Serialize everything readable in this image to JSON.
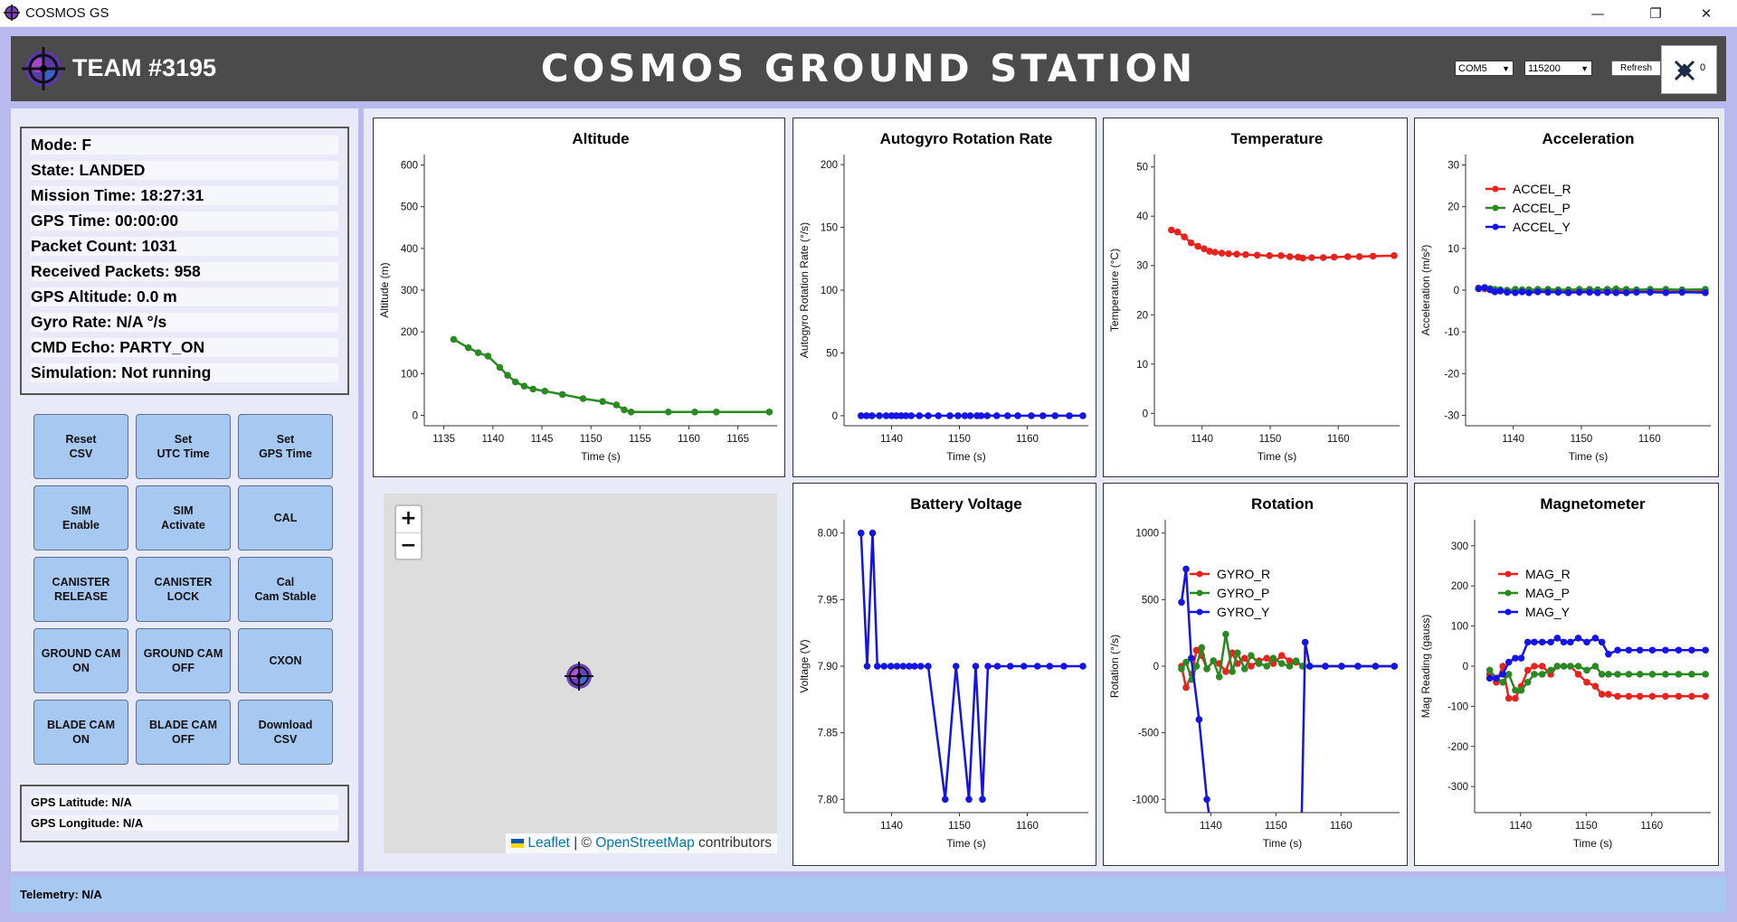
{
  "window": {
    "title": "COSMOS GS",
    "minimize": "—",
    "restore": "❐",
    "close": "✕"
  },
  "header": {
    "team": "TEAM #3195",
    "title": "COSMOS GROUND STATION",
    "port": "COM5",
    "baud": "115200",
    "refresh_label": "Refresh",
    "satellite_count": "0"
  },
  "status": [
    "Mode: F",
    "State: LANDED",
    "Mission Time: 18:27:31",
    "GPS Time: 00:00:00",
    "Packet Count: 1031",
    "Received Packets: 958",
    "GPS Altitude: 0.0 m",
    "Gyro Rate: N/A °/s",
    "CMD Echo: PARTY_ON",
    "Simulation: Not running"
  ],
  "buttons": [
    "Reset\nCSV",
    "Set\nUTC Time",
    "Set\nGPS Time",
    "SIM\nEnable",
    "SIM\nActivate",
    "CAL",
    "CANISTER\nRELEASE",
    "CANISTER\nLOCK",
    "Cal\nCam Stable",
    "GROUND CAM\nON",
    "GROUND CAM\nOFF",
    "CXON",
    "BLADE CAM\nON",
    "BLADE CAM\nOFF",
    "Download\nCSV"
  ],
  "gps": {
    "latitude": "GPS Latitude: N/A",
    "longitude": "GPS Longitude: N/A"
  },
  "map": {
    "zoom_in": "+",
    "zoom_out": "−",
    "attribution_leaflet": "Leaflet",
    "attribution_sep": " | © ",
    "attribution_osm": "OpenStreetMap",
    "attribution_rest": " contributors"
  },
  "telemetry": "Telemetry: N/A",
  "colors": {
    "R": "#e8231e",
    "P": "#2a8a22",
    "Y": "#1414e6",
    "altitude": "#2a8a22",
    "rotation_rate": "#1414e6",
    "temperature": "#e8231e",
    "voltage": "#1414e6"
  },
  "chart_data": [
    {
      "id": "altitude",
      "type": "line",
      "title": "Altitude",
      "xlabel": "Time (s)",
      "ylabel": "Altitude (m)",
      "xlim": [
        1133,
        1169
      ],
      "ylim": [
        -25,
        625
      ],
      "xticks": [
        1135,
        1140,
        1145,
        1150,
        1155,
        1160,
        1165
      ],
      "yticks": [
        0,
        100,
        200,
        300,
        400,
        500,
        600
      ],
      "series": [
        {
          "color": "altitude",
          "x": [
            1136,
            1137.5,
            1138.5,
            1139.5,
            1140.7,
            1141.5,
            1142.3,
            1143.2,
            1144.1,
            1145.3,
            1147.1,
            1149.2,
            1151.2,
            1152.6,
            1153.4,
            1154.1,
            1157.9,
            1160.6,
            1162.8,
            1168.2
          ],
          "y": [
            182,
            162,
            150,
            142,
            115,
            96,
            80,
            70,
            63,
            58,
            50,
            40,
            33,
            25,
            13,
            8,
            8,
            8,
            8,
            8
          ]
        }
      ]
    },
    {
      "id": "rotation_rate",
      "type": "line",
      "title": "Autogyro Rotation Rate",
      "xlabel": "Time (s)",
      "ylabel": "Autogyro Rotation Rate (°/s)",
      "xlim": [
        1133,
        1169
      ],
      "ylim": [
        -8,
        208
      ],
      "xticks": [
        1140,
        1150,
        1160
      ],
      "yticks": [
        0,
        50,
        100,
        150,
        200
      ],
      "series": [
        {
          "color": "rotation_rate",
          "x": [
            1135.5,
            1136.3,
            1137.1,
            1138.2,
            1139.2,
            1140,
            1140.7,
            1141.4,
            1142.1,
            1142.9,
            1144.1,
            1145.4,
            1146.9,
            1148.6,
            1149.8,
            1150.8,
            1151.6,
            1152.6,
            1153.2,
            1154.1,
            1155.5,
            1157.1,
            1158.6,
            1160.6,
            1162.3,
            1164.1,
            1166.2,
            1168.2
          ],
          "y": [
            0,
            0,
            0,
            0,
            0,
            0,
            0,
            0,
            0,
            0,
            0,
            0,
            0,
            0,
            0,
            0,
            0,
            0,
            0,
            0,
            0,
            0,
            0,
            0,
            0,
            0,
            0,
            0
          ]
        }
      ]
    },
    {
      "id": "temperature",
      "type": "line",
      "title": "Temperature",
      "xlabel": "Time (s)",
      "ylabel": "Temperature (°C)",
      "xlim": [
        1133,
        1169
      ],
      "ylim": [
        -2.5,
        52.5
      ],
      "xticks": [
        1140,
        1150,
        1160
      ],
      "yticks": [
        0,
        10,
        20,
        30,
        40,
        50
      ],
      "series": [
        {
          "color": "temperature",
          "x": [
            1135.5,
            1136.4,
            1137.4,
            1138.4,
            1139.4,
            1140.3,
            1141.1,
            1141.9,
            1142.9,
            1143.9,
            1145.1,
            1146.4,
            1148.1,
            1149.9,
            1151.6,
            1152.9,
            1154.1,
            1154.8,
            1156.1,
            1157.8,
            1159.4,
            1161.4,
            1163.1,
            1165.1,
            1168.2
          ],
          "y": [
            37.2,
            36.8,
            35.8,
            34.6,
            33.9,
            33.4,
            32.9,
            32.7,
            32.5,
            32.4,
            32.3,
            32.2,
            32.1,
            32.0,
            32.0,
            31.8,
            31.7,
            31.5,
            31.6,
            31.6,
            31.7,
            31.8,
            31.8,
            31.9,
            32.0
          ]
        }
      ]
    },
    {
      "id": "acceleration",
      "type": "line",
      "title": "Acceleration",
      "xlabel": "Time (s)",
      "ylabel": "Acceleration (m/s²)",
      "xlim": [
        1133,
        1169
      ],
      "ylim": [
        -32.5,
        32.5
      ],
      "xticks": [
        1140,
        1150,
        1160
      ],
      "yticks": [
        -30,
        -20,
        -10,
        0,
        10,
        20,
        30
      ],
      "legend": [
        "ACCEL_R",
        "ACCEL_P",
        "ACCEL_Y"
      ],
      "series": [
        {
          "name": "ACCEL_R",
          "color": "R",
          "x": [
            1134.9,
            1135.8,
            1136.6,
            1137.3,
            1138.1,
            1139.1,
            1140.3,
            1141.3,
            1142.3,
            1143.6,
            1145.1,
            1146.6,
            1148.1,
            1149.7,
            1151.2,
            1152.4,
            1153.8,
            1155.1,
            1156.6,
            1158.1,
            1160.1,
            1162.4,
            1164.8,
            1168.2
          ],
          "y": [
            0.5,
            0.3,
            0.2,
            0.1,
            -0.1,
            -0.1,
            -0.2,
            0,
            0.1,
            0,
            -0.1,
            0,
            -0.1,
            0,
            -0.1,
            0,
            0.1,
            -0.1,
            0,
            -0.1,
            0,
            -0.1,
            -0.1,
            -0.1
          ]
        },
        {
          "name": "ACCEL_P",
          "color": "P",
          "x": [
            1134.9,
            1135.8,
            1136.6,
            1137.3,
            1138.1,
            1139.1,
            1140.3,
            1141.3,
            1142.3,
            1143.6,
            1145.1,
            1146.6,
            1148.1,
            1149.7,
            1151.2,
            1152.4,
            1153.8,
            1155.1,
            1156.6,
            1158.1,
            1160.1,
            1162.4,
            1164.8,
            1168.2
          ],
          "y": [
            0.3,
            0.6,
            0.4,
            0.2,
            0.1,
            0,
            0.2,
            0.1,
            0.1,
            0.2,
            0.2,
            0.1,
            0.1,
            0.2,
            0.2,
            0.1,
            0.2,
            0.3,
            0.2,
            0.1,
            0.2,
            0.2,
            0.1,
            0.2
          ]
        },
        {
          "name": "ACCEL_Y",
          "color": "Y",
          "x": [
            1134.9,
            1135.8,
            1136.6,
            1137.3,
            1138.1,
            1139.1,
            1140.3,
            1141.3,
            1142.3,
            1143.6,
            1145.1,
            1146.6,
            1148.1,
            1149.7,
            1151.2,
            1152.4,
            1153.8,
            1155.1,
            1156.6,
            1158.1,
            1160.1,
            1162.4,
            1164.8,
            1168.2
          ],
          "y": [
            0.4,
            0.6,
            0.1,
            -0.4,
            -0.2,
            -0.5,
            -0.6,
            -0.4,
            -0.6,
            -0.4,
            -0.5,
            -0.5,
            -0.6,
            -0.5,
            -0.5,
            -0.6,
            -0.5,
            -0.6,
            -0.6,
            -0.5,
            -0.5,
            -0.6,
            -0.5,
            -0.6
          ]
        }
      ]
    },
    {
      "id": "voltage",
      "type": "line",
      "title": "Battery Voltage",
      "xlabel": "Time (s)",
      "ylabel": "Voltage (V)",
      "xlim": [
        1133,
        1169
      ],
      "ylim": [
        7.79,
        8.01
      ],
      "xticks": [
        1140,
        1150,
        1160
      ],
      "yticks": [
        7.8,
        7.85,
        7.9,
        7.95,
        8.0
      ],
      "series": [
        {
          "color": "voltage",
          "x": [
            1135.5,
            1136.4,
            1137.2,
            1137.9,
            1138.9,
            1139.9,
            1140.8,
            1141.7,
            1142.6,
            1143.4,
            1144.3,
            1145.4,
            1147.9,
            1149.5,
            1151.4,
            1152.4,
            1153.4,
            1154.2,
            1155.6,
            1157.5,
            1159.5,
            1161.5,
            1163.3,
            1165.4,
            1168.2
          ],
          "y": [
            8.0,
            7.9,
            8.0,
            7.9,
            7.9,
            7.9,
            7.9,
            7.9,
            7.9,
            7.9,
            7.9,
            7.9,
            7.8,
            7.9,
            7.8,
            7.9,
            7.8,
            7.9,
            7.9,
            7.9,
            7.9,
            7.9,
            7.9,
            7.9,
            7.9
          ]
        }
      ]
    },
    {
      "id": "rotation",
      "type": "line",
      "title": "Rotation",
      "xlabel": "Time (s)",
      "ylabel": "Rotation (°/s)",
      "xlim": [
        1133,
        1169
      ],
      "ylim": [
        -1100,
        1100
      ],
      "xticks": [
        1140,
        1150,
        1160
      ],
      "yticks": [
        -1000,
        -500,
        0,
        500,
        1000
      ],
      "legend": [
        "GYRO_R",
        "GYRO_P",
        "GYRO_Y"
      ],
      "series": [
        {
          "name": "GYRO_R",
          "color": "R",
          "x": [
            1135.5,
            1136.2,
            1137.1,
            1137.8,
            1138.6,
            1139.4,
            1140.4,
            1141.3,
            1142.3,
            1143.3,
            1144.1,
            1145.2,
            1146.2,
            1147.4,
            1148.6,
            1149.6,
            1150.9,
            1152.1,
            1153.1,
            1154.1,
            1155.2,
            1157.6,
            1160.1,
            1162.6,
            1165.3,
            1168.2
          ],
          "y": [
            0,
            -160,
            -60,
            120,
            80,
            -20,
            40,
            20,
            -40,
            100,
            20,
            60,
            0,
            40,
            60,
            20,
            80,
            40,
            30,
            0,
            0,
            0,
            0,
            0,
            0,
            0
          ]
        },
        {
          "name": "GYRO_P",
          "color": "P",
          "x": [
            1135.5,
            1136.2,
            1137.1,
            1137.8,
            1138.6,
            1139.4,
            1140.4,
            1141.3,
            1142.3,
            1143.3,
            1144.1,
            1145.2,
            1146.2,
            1147.4,
            1148.6,
            1149.6,
            1150.9,
            1152.1,
            1153.1,
            1154.1,
            1155.2,
            1157.6,
            1160.1,
            1162.6,
            1165.3,
            1168.2
          ],
          "y": [
            -20,
            30,
            -100,
            0,
            140,
            -20,
            40,
            -80,
            240,
            -40,
            100,
            -20,
            80,
            20,
            0,
            60,
            20,
            0,
            40,
            0,
            0,
            0,
            0,
            0,
            0,
            0
          ]
        },
        {
          "name": "GYRO_Y",
          "color": "Y",
          "x": [
            1135.5,
            1136.2,
            1137.0,
            1138.2,
            1139.4,
            1140.3,
            1153.9,
            1154.5,
            1155.2,
            1157.6,
            1160.1,
            1162.6,
            1165.3,
            1168.2
          ],
          "y": [
            480,
            730,
            60,
            -400,
            -1000,
            -1300,
            -1300,
            180,
            0,
            0,
            0,
            0,
            0,
            0
          ]
        }
      ]
    },
    {
      "id": "magnetometer",
      "type": "line",
      "title": "Magnetometer",
      "xlabel": "Time (s)",
      "ylabel": "Mag Reading (gauss)",
      "xlim": [
        1133,
        1169
      ],
      "ylim": [
        -365,
        365
      ],
      "xticks": [
        1140,
        1150,
        1160
      ],
      "yticks": [
        -300,
        -200,
        -100,
        0,
        100,
        200,
        300
      ],
      "legend": [
        "MAG_R",
        "MAG_P",
        "MAG_Y"
      ],
      "series": [
        {
          "name": "MAG_R",
          "color": "R",
          "x": [
            1135.3,
            1136.3,
            1137.3,
            1138.2,
            1139.2,
            1140.1,
            1141.1,
            1142.1,
            1143.3,
            1144.6,
            1145.6,
            1146.6,
            1147.6,
            1148.8,
            1150.1,
            1151.4,
            1152.4,
            1153.4,
            1154.8,
            1156.5,
            1158.2,
            1160.1,
            1162.1,
            1164.1,
            1166.1,
            1168.2
          ],
          "y": [
            -20,
            -40,
            0,
            -80,
            -80,
            -50,
            -10,
            0,
            0,
            -20,
            0,
            0,
            0,
            -20,
            -40,
            -50,
            -70,
            -70,
            -75,
            -75,
            -75,
            -75,
            -75,
            -75,
            -75,
            -75
          ]
        },
        {
          "name": "MAG_P",
          "color": "P",
          "x": [
            1135.3,
            1136.3,
            1137.3,
            1138.2,
            1139.2,
            1140.1,
            1141.1,
            1142.1,
            1143.3,
            1144.6,
            1145.6,
            1146.6,
            1147.6,
            1148.8,
            1150.1,
            1151.4,
            1152.4,
            1153.4,
            1154.8,
            1156.5,
            1158.2,
            1160.1,
            1162.1,
            1164.1,
            1166.1,
            1168.2
          ],
          "y": [
            -10,
            -30,
            -40,
            -20,
            -60,
            -60,
            -40,
            -20,
            -20,
            -10,
            0,
            0,
            0,
            0,
            -10,
            0,
            -20,
            -20,
            -20,
            -20,
            -20,
            -20,
            -20,
            -20,
            -20,
            -20
          ]
        },
        {
          "name": "MAG_Y",
          "color": "Y",
          "x": [
            1135.3,
            1136.3,
            1137.3,
            1138.2,
            1139.2,
            1140.1,
            1141.1,
            1142.1,
            1143.3,
            1144.6,
            1145.6,
            1146.6,
            1147.6,
            1148.8,
            1150.1,
            1151.4,
            1152.4,
            1153.4,
            1154.8,
            1156.5,
            1158.2,
            1160.1,
            1162.1,
            1164.1,
            1166.1,
            1168.2
          ],
          "y": [
            -30,
            -30,
            -20,
            10,
            20,
            20,
            60,
            60,
            60,
            60,
            70,
            60,
            60,
            70,
            60,
            70,
            60,
            30,
            40,
            40,
            40,
            40,
            40,
            40,
            40,
            40
          ]
        }
      ]
    }
  ]
}
